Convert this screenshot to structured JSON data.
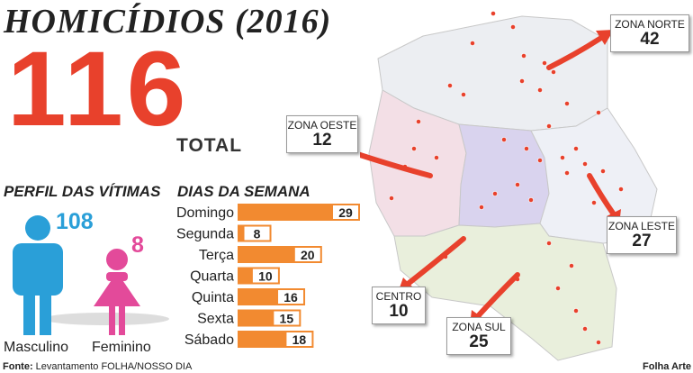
{
  "title": "HOMICÍDIOS (2016)",
  "total": {
    "value": "116",
    "label": "TOTAL"
  },
  "victims": {
    "title": "PERFIL DAS VÍTIMAS",
    "male": {
      "count": "108",
      "label": "Masculino",
      "color": "#2a9fd8"
    },
    "female": {
      "count": "8",
      "label": "Feminino",
      "color": "#e34a9a"
    }
  },
  "zones": [
    {
      "name": "ZONA NORTE",
      "value": "42"
    },
    {
      "name": "ZONA OESTE",
      "value": "12"
    },
    {
      "name": "ZONA LESTE",
      "value": "27"
    },
    {
      "name": "CENTRO",
      "value": "10"
    },
    {
      "name": "ZONA SUL",
      "value": "25"
    }
  ],
  "source": {
    "label": "Fonte:",
    "text": "Levantamento FOLHA/NOSSO DIA"
  },
  "credit": "Folha Arte",
  "chart_data": {
    "type": "bar",
    "orientation": "horizontal",
    "title": "DIAS DA SEMANA",
    "categories": [
      "Domingo",
      "Segunda",
      "Terça",
      "Quarta",
      "Quinta",
      "Sexta",
      "Sábado"
    ],
    "values": [
      29,
      8,
      20,
      10,
      16,
      15,
      18
    ],
    "color": "#f28a30",
    "xlim": [
      0,
      29
    ]
  }
}
